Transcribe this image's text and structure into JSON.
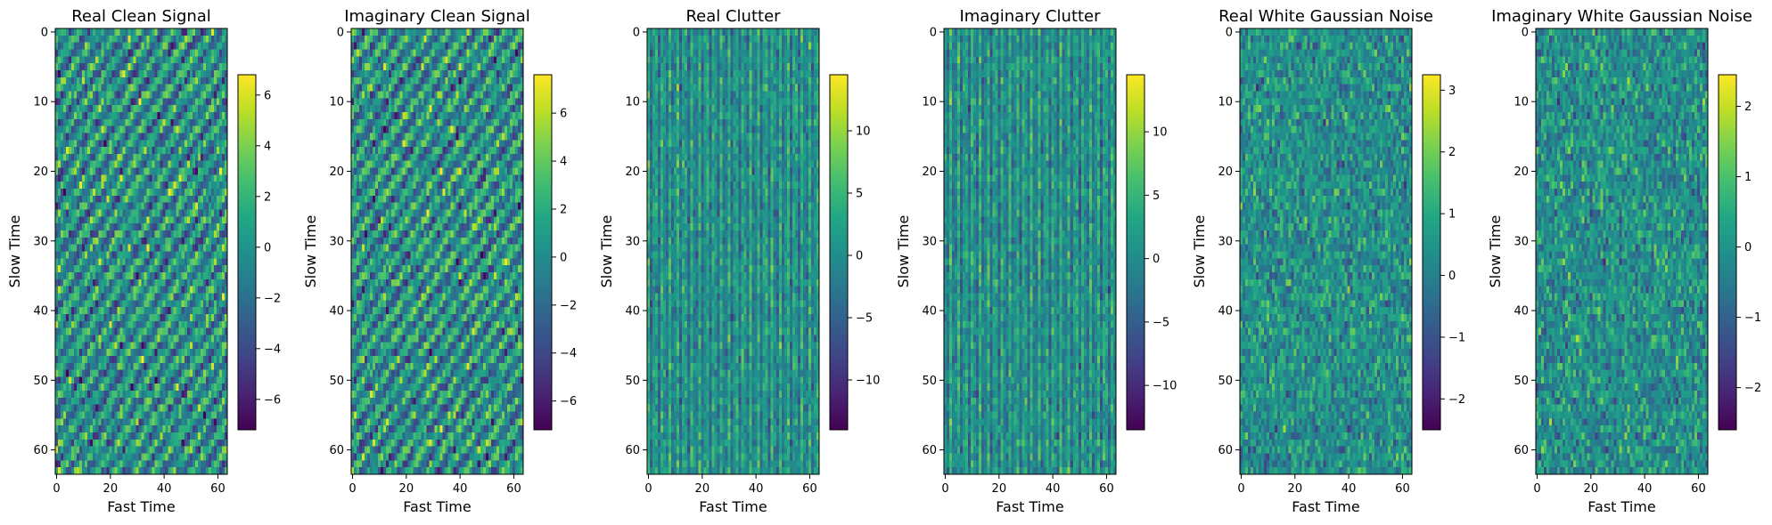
{
  "figure": {
    "colormap": "viridis",
    "grid": false
  },
  "chart_data": [
    {
      "type": "heatmap",
      "title": "Real Clean Signal",
      "xlabel": "Fast Time",
      "ylabel": "Slow Time",
      "rows": 64,
      "cols": 64,
      "xticks": [
        0,
        20,
        40,
        60
      ],
      "yticks": [
        0,
        10,
        20,
        30,
        40,
        50,
        60
      ],
      "colorbar": {
        "range": [
          -7.2,
          6.8
        ],
        "ticks": [
          -6,
          -4,
          -2,
          0,
          2,
          4,
          6
        ],
        "tick_labels": [
          "−6",
          "−4",
          "−2",
          "0",
          "2",
          "4",
          "6"
        ]
      }
    },
    {
      "type": "heatmap",
      "title": "Imaginary Clean Signal",
      "xlabel": "Fast Time",
      "ylabel": "Slow Time",
      "rows": 64,
      "cols": 64,
      "xticks": [
        0,
        20,
        40,
        60
      ],
      "yticks": [
        0,
        10,
        20,
        30,
        40,
        50,
        60
      ],
      "colorbar": {
        "range": [
          -7.2,
          7.6
        ],
        "ticks": [
          -6,
          -4,
          -2,
          0,
          2,
          4,
          6
        ],
        "tick_labels": [
          "−6",
          "−4",
          "−2",
          "0",
          "2",
          "4",
          "6"
        ]
      }
    },
    {
      "type": "heatmap",
      "title": "Real Clutter",
      "xlabel": "Fast Time",
      "ylabel": "Slow Time",
      "rows": 64,
      "cols": 64,
      "xticks": [
        0,
        20,
        40,
        60
      ],
      "yticks": [
        0,
        10,
        20,
        30,
        40,
        50,
        60
      ],
      "colorbar": {
        "range": [
          -14,
          14.5
        ],
        "ticks": [
          -10,
          -5,
          0,
          5,
          10
        ],
        "tick_labels": [
          "−10",
          "−5",
          "0",
          "5",
          "10"
        ]
      }
    },
    {
      "type": "heatmap",
      "title": "Imaginary Clutter",
      "xlabel": "Fast Time",
      "ylabel": "Slow Time",
      "rows": 64,
      "cols": 64,
      "xticks": [
        0,
        20,
        40,
        60
      ],
      "yticks": [
        0,
        10,
        20,
        30,
        40,
        50,
        60
      ],
      "colorbar": {
        "range": [
          -13.5,
          14.5
        ],
        "ticks": [
          -10,
          -5,
          0,
          5,
          10
        ],
        "tick_labels": [
          "−10",
          "−5",
          "0",
          "5",
          "10"
        ]
      }
    },
    {
      "type": "heatmap",
      "title": "Real White Gaussian Noise",
      "xlabel": "Fast Time",
      "ylabel": "Slow Time",
      "rows": 64,
      "cols": 64,
      "xticks": [
        0,
        20,
        40,
        60
      ],
      "yticks": [
        0,
        10,
        20,
        30,
        40,
        50,
        60
      ],
      "colorbar": {
        "range": [
          -2.5,
          3.25
        ],
        "ticks": [
          -2,
          -1,
          0,
          1,
          2,
          3
        ],
        "tick_labels": [
          "−2",
          "−1",
          "0",
          "1",
          "2",
          "3"
        ]
      }
    },
    {
      "type": "heatmap",
      "title": "Imaginary White Gaussian Noise",
      "xlabel": "Fast Time",
      "ylabel": "Slow Time",
      "rows": 64,
      "cols": 64,
      "xticks": [
        0,
        20,
        40,
        60
      ],
      "yticks": [
        0,
        10,
        20,
        30,
        40,
        50,
        60
      ],
      "colorbar": {
        "range": [
          -2.6,
          2.45
        ],
        "ticks": [
          -2,
          -1,
          0,
          1,
          2
        ],
        "tick_labels": [
          "−2",
          "−1",
          "0",
          "1",
          "2"
        ]
      }
    }
  ]
}
